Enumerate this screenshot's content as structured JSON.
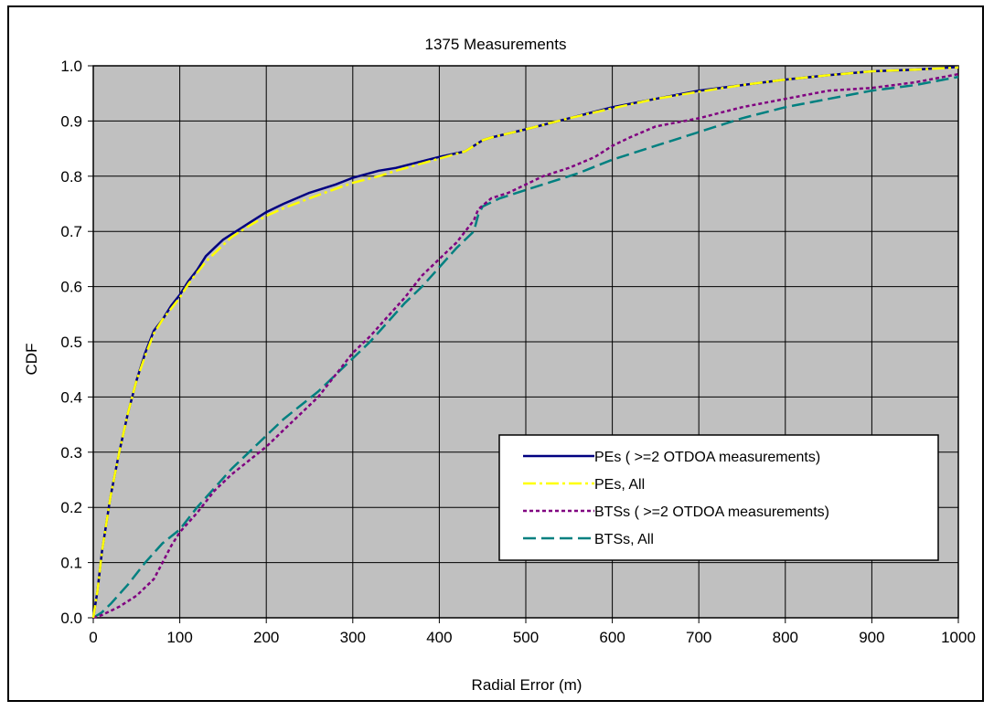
{
  "chart_data": {
    "type": "line",
    "title": "1375 Measurements",
    "xlabel": "Radial Error (m)",
    "ylabel": "CDF",
    "xlim": [
      0,
      1000
    ],
    "ylim": [
      0,
      1
    ],
    "x_ticks": [
      "0",
      "100",
      "200",
      "300",
      "400",
      "500",
      "600",
      "700",
      "800",
      "900",
      "1000"
    ],
    "y_ticks": [
      "0.0",
      "0.1",
      "0.2",
      "0.3",
      "0.4",
      "0.5",
      "0.6",
      "0.7",
      "0.8",
      "0.9",
      "1.0"
    ],
    "grid": true,
    "plot_background": "#c0c0c0",
    "legend_position": "lower-right",
    "series": [
      {
        "name": "PEs ( >=2 OTDOA measurements)",
        "color": "#000080",
        "dash": "solid",
        "points": [
          [
            0,
            0
          ],
          [
            5,
            0.05
          ],
          [
            10,
            0.12
          ],
          [
            20,
            0.22
          ],
          [
            30,
            0.3
          ],
          [
            40,
            0.37
          ],
          [
            50,
            0.43
          ],
          [
            60,
            0.48
          ],
          [
            70,
            0.52
          ],
          [
            80,
            0.54
          ],
          [
            90,
            0.565
          ],
          [
            100,
            0.585
          ],
          [
            110,
            0.61
          ],
          [
            120,
            0.63
          ],
          [
            130,
            0.655
          ],
          [
            140,
            0.67
          ],
          [
            150,
            0.685
          ],
          [
            160,
            0.695
          ],
          [
            170,
            0.705
          ],
          [
            180,
            0.715
          ],
          [
            200,
            0.735
          ],
          [
            220,
            0.75
          ],
          [
            250,
            0.77
          ],
          [
            280,
            0.785
          ],
          [
            300,
            0.797
          ],
          [
            330,
            0.81
          ],
          [
            350,
            0.815
          ],
          [
            400,
            0.835
          ],
          [
            430,
            0.845
          ],
          [
            450,
            0.865
          ],
          [
            460,
            0.87
          ],
          [
            500,
            0.885
          ],
          [
            550,
            0.905
          ],
          [
            600,
            0.925
          ],
          [
            650,
            0.94
          ],
          [
            700,
            0.955
          ],
          [
            750,
            0.965
          ],
          [
            800,
            0.975
          ],
          [
            850,
            0.983
          ],
          [
            900,
            0.99
          ],
          [
            950,
            0.993
          ],
          [
            1000,
            0.998
          ]
        ]
      },
      {
        "name": "PEs, All",
        "color": "#ffff00",
        "dash": "dash-dot",
        "points": [
          [
            0,
            0
          ],
          [
            5,
            0.05
          ],
          [
            10,
            0.12
          ],
          [
            20,
            0.22
          ],
          [
            30,
            0.3
          ],
          [
            40,
            0.37
          ],
          [
            50,
            0.43
          ],
          [
            60,
            0.475
          ],
          [
            70,
            0.515
          ],
          [
            80,
            0.54
          ],
          [
            90,
            0.56
          ],
          [
            100,
            0.58
          ],
          [
            110,
            0.605
          ],
          [
            120,
            0.625
          ],
          [
            130,
            0.645
          ],
          [
            140,
            0.66
          ],
          [
            150,
            0.675
          ],
          [
            160,
            0.69
          ],
          [
            170,
            0.7
          ],
          [
            180,
            0.71
          ],
          [
            200,
            0.728
          ],
          [
            220,
            0.742
          ],
          [
            250,
            0.76
          ],
          [
            280,
            0.777
          ],
          [
            300,
            0.788
          ],
          [
            330,
            0.8
          ],
          [
            350,
            0.81
          ],
          [
            400,
            0.832
          ],
          [
            430,
            0.845
          ],
          [
            450,
            0.865
          ],
          [
            460,
            0.87
          ],
          [
            500,
            0.885
          ],
          [
            550,
            0.905
          ],
          [
            600,
            0.923
          ],
          [
            650,
            0.94
          ],
          [
            700,
            0.953
          ],
          [
            750,
            0.965
          ],
          [
            800,
            0.975
          ],
          [
            850,
            0.983
          ],
          [
            900,
            0.99
          ],
          [
            950,
            0.993
          ],
          [
            1000,
            0.997
          ]
        ]
      },
      {
        "name": "BTSs ( >=2 OTDOA measurements)",
        "color": "#800080",
        "dash": "dotted",
        "points": [
          [
            0,
            0
          ],
          [
            10,
            0.005
          ],
          [
            30,
            0.02
          ],
          [
            50,
            0.04
          ],
          [
            70,
            0.07
          ],
          [
            80,
            0.1
          ],
          [
            90,
            0.13
          ],
          [
            100,
            0.155
          ],
          [
            120,
            0.19
          ],
          [
            140,
            0.23
          ],
          [
            160,
            0.26
          ],
          [
            180,
            0.285
          ],
          [
            200,
            0.31
          ],
          [
            220,
            0.34
          ],
          [
            240,
            0.37
          ],
          [
            260,
            0.4
          ],
          [
            280,
            0.44
          ],
          [
            300,
            0.48
          ],
          [
            320,
            0.51
          ],
          [
            340,
            0.545
          ],
          [
            360,
            0.58
          ],
          [
            380,
            0.62
          ],
          [
            400,
            0.65
          ],
          [
            420,
            0.68
          ],
          [
            440,
            0.72
          ],
          [
            445,
            0.74
          ],
          [
            460,
            0.76
          ],
          [
            480,
            0.77
          ],
          [
            500,
            0.785
          ],
          [
            520,
            0.8
          ],
          [
            550,
            0.815
          ],
          [
            580,
            0.835
          ],
          [
            600,
            0.855
          ],
          [
            620,
            0.87
          ],
          [
            650,
            0.89
          ],
          [
            700,
            0.905
          ],
          [
            750,
            0.925
          ],
          [
            800,
            0.94
          ],
          [
            850,
            0.955
          ],
          [
            900,
            0.96
          ],
          [
            950,
            0.97
          ],
          [
            1000,
            0.985
          ]
        ]
      },
      {
        "name": "BTSs, All",
        "color": "#008080",
        "dash": "dashed",
        "points": [
          [
            0,
            0
          ],
          [
            10,
            0.01
          ],
          [
            20,
            0.025
          ],
          [
            40,
            0.06
          ],
          [
            60,
            0.1
          ],
          [
            80,
            0.135
          ],
          [
            100,
            0.16
          ],
          [
            120,
            0.2
          ],
          [
            140,
            0.235
          ],
          [
            160,
            0.27
          ],
          [
            180,
            0.3
          ],
          [
            200,
            0.33
          ],
          [
            220,
            0.36
          ],
          [
            240,
            0.385
          ],
          [
            260,
            0.41
          ],
          [
            280,
            0.44
          ],
          [
            300,
            0.47
          ],
          [
            320,
            0.5
          ],
          [
            340,
            0.535
          ],
          [
            360,
            0.57
          ],
          [
            380,
            0.6
          ],
          [
            400,
            0.635
          ],
          [
            420,
            0.67
          ],
          [
            440,
            0.7
          ],
          [
            445,
            0.73
          ],
          [
            450,
            0.745
          ],
          [
            470,
            0.76
          ],
          [
            500,
            0.775
          ],
          [
            530,
            0.79
          ],
          [
            560,
            0.805
          ],
          [
            600,
            0.83
          ],
          [
            650,
            0.855
          ],
          [
            700,
            0.88
          ],
          [
            750,
            0.905
          ],
          [
            800,
            0.925
          ],
          [
            850,
            0.94
          ],
          [
            900,
            0.955
          ],
          [
            950,
            0.965
          ],
          [
            1000,
            0.98
          ]
        ]
      }
    ]
  }
}
